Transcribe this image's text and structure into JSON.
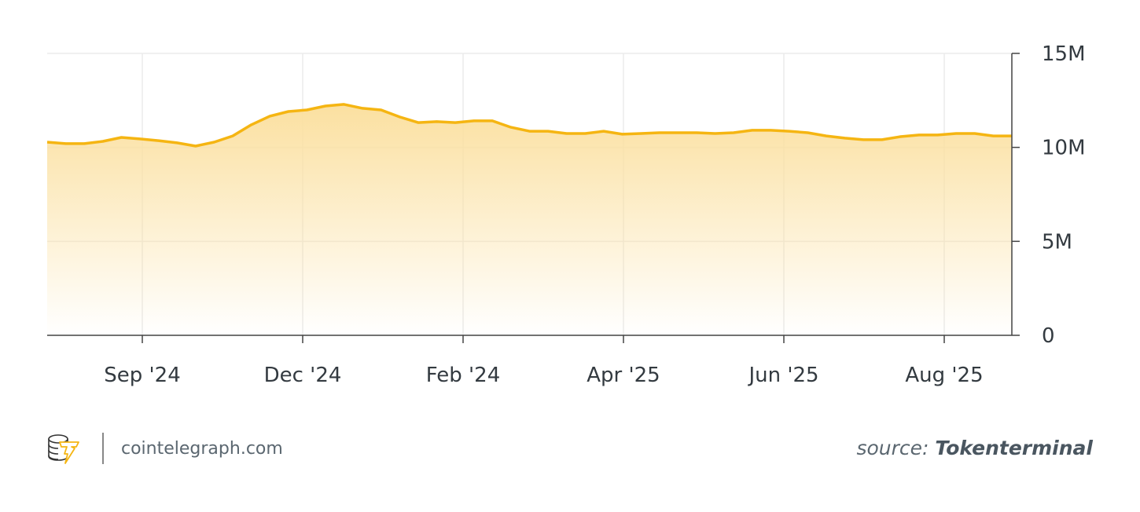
{
  "chart_data": {
    "type": "area",
    "title": "",
    "xlabel": "",
    "ylabel": "",
    "x_tick_labels": [
      "Sep '24",
      "Dec '24",
      "Feb '24",
      "Apr '25",
      "Jun '25",
      "Aug '25"
    ],
    "y_tick_labels": [
      "0",
      "5M",
      "10M",
      "15M"
    ],
    "y_ticks": [
      0,
      5,
      10,
      15
    ],
    "ylim": [
      0,
      15
    ],
    "y_unit": "M",
    "y_axis_position": "right",
    "grid": true,
    "series": [
      {
        "color": "#f5b512",
        "fill_color": "#fbe3a4",
        "values": [
          10.28,
          10.2,
          10.2,
          10.32,
          10.53,
          10.45,
          10.36,
          10.24,
          10.07,
          10.28,
          10.61,
          11.2,
          11.66,
          11.91,
          11.99,
          12.2,
          12.29,
          12.08,
          11.99,
          11.62,
          11.32,
          11.37,
          11.32,
          11.41,
          11.41,
          11.07,
          10.86,
          10.86,
          10.74,
          10.74,
          10.86,
          10.7,
          10.74,
          10.78,
          10.78,
          10.78,
          10.74,
          10.78,
          10.91,
          10.91,
          10.86,
          10.78,
          10.61,
          10.49,
          10.41,
          10.41,
          10.57,
          10.66,
          10.66,
          10.74,
          10.74,
          10.61,
          10.61
        ]
      }
    ]
  },
  "footer": {
    "brand": "cointelegraph.com",
    "source_prefix": "source:",
    "source_name": "Tokenterminal"
  }
}
